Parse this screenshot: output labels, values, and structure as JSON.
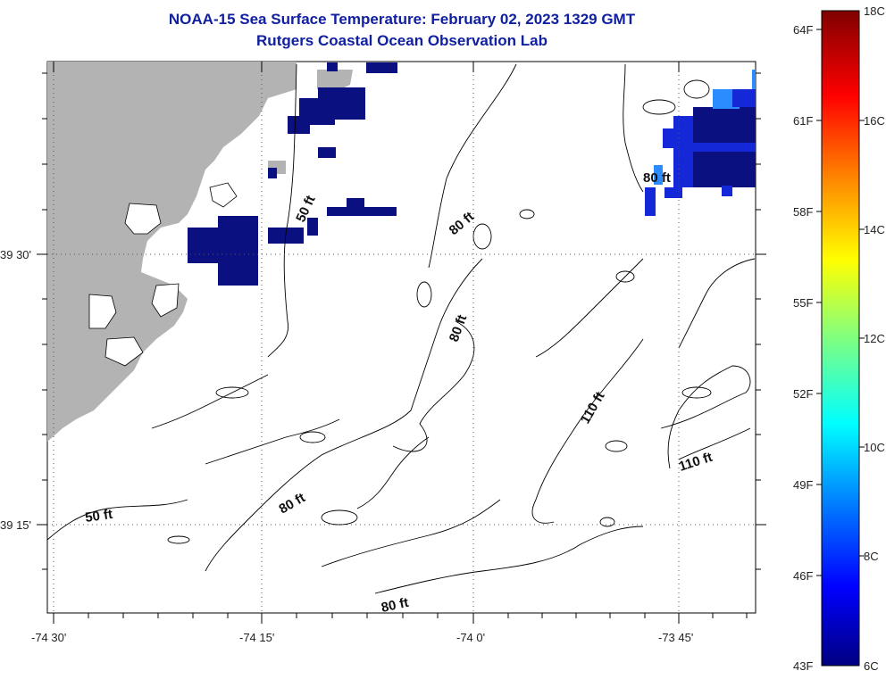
{
  "header": {
    "title": "NOAA-15 Sea Surface Temperature:  February 02, 2023 1329 GMT",
    "subtitle": "Rutgers Coastal Ocean Observation Lab"
  },
  "axes": {
    "x_ticks": [
      "-74 30'",
      "-74 15'",
      "-74 0'",
      "-73 45'"
    ],
    "y_ticks": [
      "39 30'",
      "39 15'"
    ]
  },
  "contours": [
    {
      "label": "50 ft"
    },
    {
      "label": "50 ft"
    },
    {
      "label": "80 ft"
    },
    {
      "label": "80 ft"
    },
    {
      "label": "80 ft"
    },
    {
      "label": "80 ft"
    },
    {
      "label": "110 ft"
    },
    {
      "label": "110 ft"
    }
  ],
  "colorbar": {
    "f_labels": [
      "64F",
      "61F",
      "58F",
      "55F",
      "52F",
      "49F",
      "46F",
      "43F"
    ],
    "c_labels": [
      "18C",
      "16C",
      "14C",
      "12C",
      "10C",
      "8C",
      "6C"
    ],
    "stops": [
      "#000080",
      "#0000ff",
      "#0080ff",
      "#00ffff",
      "#80ff80",
      "#ffff00",
      "#ff8000",
      "#ff0000",
      "#800000"
    ]
  },
  "colors": {
    "land": "#b3b3b3",
    "sst_dark": "#0a1080",
    "sst_mid": "#1428d8",
    "sst_light": "#2a8cff",
    "title": "#1020a0"
  }
}
